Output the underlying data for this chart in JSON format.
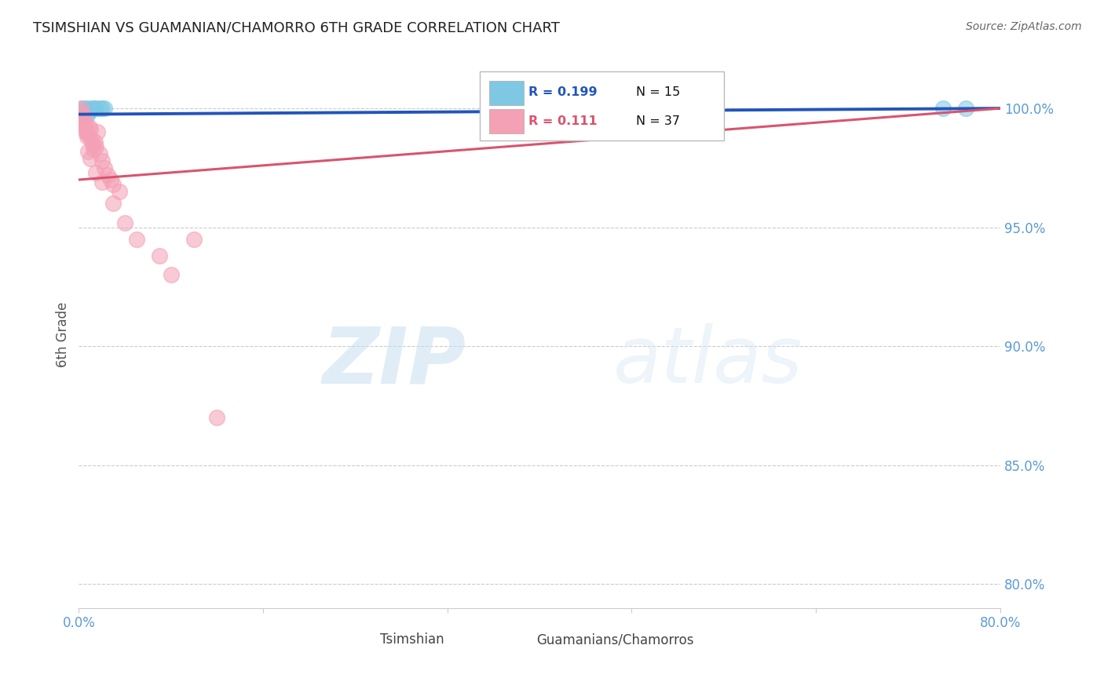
{
  "title": "TSIMSHIAN VS GUAMANIAN/CHAMORRO 6TH GRADE CORRELATION CHART",
  "source": "Source: ZipAtlas.com",
  "ylabel": "6th Grade",
  "xlim": [
    0.0,
    80.0
  ],
  "ylim": [
    79.0,
    102.0
  ],
  "yticks": [
    80.0,
    85.0,
    90.0,
    95.0,
    100.0
  ],
  "ytick_labels": [
    "80.0%",
    "85.0%",
    "90.0%",
    "95.0%",
    "100.0%"
  ],
  "xticks": [
    0.0,
    16.0,
    32.0,
    48.0,
    64.0,
    80.0
  ],
  "xtick_labels": [
    "0.0%",
    "",
    "",
    "",
    "",
    "80.0%"
  ],
  "legend_blue_r": "R = 0.199",
  "legend_blue_n": "N = 15",
  "legend_pink_r": "R = 0.111",
  "legend_pink_n": "N = 37",
  "legend_label_blue": "Tsimshian",
  "legend_label_pink": "Guamanians/Chamorros",
  "blue_color": "#7ec8e3",
  "pink_color": "#f4a0b5",
  "blue_line_color": "#2255bb",
  "pink_line_color": "#d9546e",
  "grid_color": "#cccccc",
  "axis_label_color": "#5b9bd5",
  "title_color": "#222222",
  "blue_scatter_x": [
    0.3,
    0.5,
    0.8,
    1.0,
    1.2,
    1.5,
    1.8,
    2.0,
    0.4,
    0.6,
    1.3,
    2.2,
    0.7,
    75.0,
    77.0
  ],
  "blue_scatter_y": [
    100.0,
    100.0,
    100.0,
    99.9,
    100.0,
    100.0,
    100.0,
    100.0,
    99.8,
    99.9,
    100.0,
    100.0,
    99.7,
    100.0,
    100.0
  ],
  "pink_scatter_x": [
    0.1,
    0.2,
    0.3,
    0.4,
    0.5,
    0.6,
    0.7,
    0.8,
    0.9,
    1.0,
    1.1,
    1.2,
    1.3,
    1.4,
    1.5,
    1.6,
    1.8,
    2.0,
    2.2,
    2.5,
    2.8,
    3.0,
    3.5,
    0.2,
    0.4,
    0.6,
    0.8,
    1.0,
    1.5,
    2.0,
    3.0,
    4.0,
    5.0,
    7.0,
    8.0,
    10.0,
    12.0
  ],
  "pink_scatter_y": [
    99.8,
    99.5,
    99.3,
    99.6,
    99.4,
    99.0,
    98.8,
    98.9,
    99.2,
    99.1,
    98.7,
    98.5,
    98.3,
    98.6,
    98.4,
    99.0,
    98.1,
    97.8,
    97.5,
    97.2,
    97.0,
    96.8,
    96.5,
    100.0,
    99.7,
    99.1,
    98.2,
    97.9,
    97.3,
    96.9,
    96.0,
    95.2,
    94.5,
    93.8,
    93.0,
    94.5,
    87.0
  ],
  "blue_trend_x": [
    0.0,
    80.0
  ],
  "blue_trend_y": [
    99.75,
    100.0
  ],
  "pink_trend_x": [
    0.0,
    80.0
  ],
  "pink_trend_y": [
    97.0,
    100.0
  ],
  "watermark_zip": "ZIP",
  "watermark_atlas": "atlas",
  "background_color": "#ffffff"
}
